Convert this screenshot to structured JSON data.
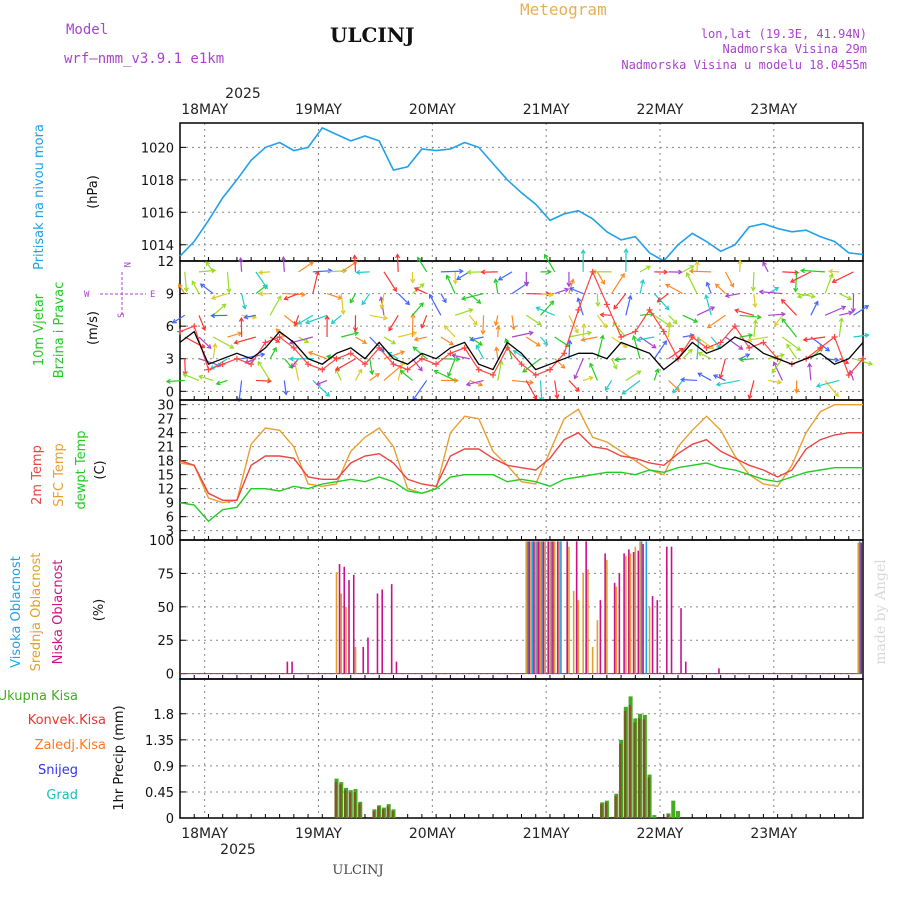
{
  "header": {
    "model_label": "Model",
    "model_name": "wrf—nmm_v3.9.1  e1km",
    "station": "ULCINJ",
    "product": "Meteogram",
    "lonlat": "lon,lat (19.3E, 41.94N)",
    "elevation": "Nadmorska Visina 29m",
    "model_elevation": "Nadmorska Visina u modelu 18.0455m",
    "footer_station": "ULCINJ",
    "credit": "made by Angel"
  },
  "time_axis": {
    "year": "2025",
    "day_labels": [
      "18MAY",
      "19MAY",
      "20MAY",
      "21MAY",
      "22MAY",
      "23MAY"
    ]
  },
  "panel_labels": {
    "pressure": [
      "Pritisak na nivou mora"
    ],
    "pressure_unit": "(hPa)",
    "wind": [
      "10m Vjetar",
      "Brzina i Pravac"
    ],
    "wind_unit": "(m/s)",
    "wind_compass": {
      "w": "W",
      "e": "E",
      "n": "N",
      "s": "S"
    },
    "temp": [
      "2m Temp",
      "SFC Temp",
      "dewpt Temp"
    ],
    "temp_unit": "(C)",
    "cloud": [
      "Visoka Oblacnost",
      "Srednja Oblacnost",
      "Niska Oblacnost"
    ],
    "cloud_unit": "(%)",
    "precip_legend": [
      "Ukupna Kisa",
      "Konvek.Kisa",
      "Zaledj.Kisa",
      "Snijeg",
      "Grad"
    ],
    "precip_unit": "1hr Precip (mm)"
  },
  "colors": {
    "pressure": "#22a0e8",
    "wind_speed": "#000000",
    "wind_gust": "#ff4444",
    "temp_2m": "#ee4444",
    "temp_sfc": "#e8a030",
    "temp_dew": "#22cc22",
    "cloud_high": "#22a0e8",
    "cloud_mid": "#e0a030",
    "cloud_low": "#cc1188",
    "precip_total": "#44aa22",
    "precip_conv": "#ee3333",
    "precip_frz": "#ff7722",
    "precip_snow": "#3333ee",
    "precip_grad": "#22bbbb",
    "title_purple": "#aa44cc",
    "meteogram_orange": "#e8b050"
  },
  "chart_data": [
    {
      "type": "line",
      "name": "pressure",
      "ylim": [
        1013,
        1021.5
      ],
      "yticks": [
        1014,
        1016,
        1018,
        1020
      ],
      "x_hours": [
        0,
        3,
        6,
        9,
        12,
        15,
        18,
        21,
        24,
        27,
        30,
        33,
        36,
        39,
        42,
        45,
        48,
        51,
        54,
        57,
        60,
        63,
        66,
        69,
        72,
        75,
        78,
        81,
        84,
        87,
        90,
        93,
        96,
        99,
        102,
        105,
        108,
        111,
        114,
        117,
        120,
        123,
        126,
        129,
        132,
        135,
        138,
        141,
        144
      ],
      "values": [
        1013.3,
        1014.2,
        1015.5,
        1016.9,
        1018.0,
        1019.2,
        1020.0,
        1020.3,
        1019.8,
        1020.0,
        1021.2,
        1020.8,
        1020.4,
        1020.7,
        1020.4,
        1018.6,
        1018.8,
        1019.9,
        1019.8,
        1019.9,
        1020.3,
        1020.0,
        1019.0,
        1018.0,
        1017.2,
        1016.5,
        1015.5,
        1015.9,
        1016.1,
        1015.6,
        1014.8,
        1014.3,
        1014.5,
        1013.5,
        1013.0,
        1014.0,
        1014.7,
        1014.2,
        1013.6,
        1014.0,
        1015.1,
        1015.3,
        1015.0,
        1014.8,
        1014.9,
        1014.5,
        1014.2,
        1013.5,
        1013.4
      ]
    },
    {
      "type": "line",
      "name": "wind",
      "ylim": [
        -0.8,
        12
      ],
      "yticks": [
        0,
        3,
        6,
        9,
        12
      ],
      "x_hours": [
        0,
        3,
        6,
        9,
        12,
        15,
        18,
        21,
        24,
        27,
        30,
        33,
        36,
        39,
        42,
        45,
        48,
        51,
        54,
        57,
        60,
        63,
        66,
        69,
        72,
        75,
        78,
        81,
        84,
        87,
        90,
        93,
        96,
        99,
        102,
        105,
        108,
        111,
        114,
        117,
        120,
        123,
        126,
        129,
        132,
        135,
        138,
        141,
        144
      ],
      "speed": [
        4.5,
        5.5,
        2.5,
        3.0,
        3.5,
        3.0,
        4.0,
        5.5,
        4.5,
        3.0,
        2.5,
        3.5,
        4.0,
        3.0,
        4.5,
        3.0,
        2.5,
        3.5,
        3.0,
        4.0,
        4.5,
        2.5,
        2.0,
        4.5,
        3.5,
        2.0,
        2.5,
        3.0,
        3.5,
        3.5,
        3.0,
        4.5,
        4.0,
        3.5,
        2.0,
        3.0,
        4.5,
        3.5,
        4.0,
        5.0,
        4.5,
        3.5,
        3.0,
        2.5,
        3.0,
        3.5,
        2.5,
        3.0,
        4.5
      ],
      "gust": [
        5.5,
        6.0,
        2.0,
        2.5,
        3.0,
        2.5,
        4.5,
        5.0,
        4.0,
        2.5,
        2.0,
        3.0,
        3.5,
        2.5,
        4.0,
        2.5,
        2.0,
        3.0,
        2.5,
        3.5,
        4.0,
        2.0,
        1.5,
        4.0,
        2.5,
        1.5,
        2.0,
        3.5,
        7.5,
        11.0,
        8.0,
        5.0,
        5.5,
        7.5,
        5.5,
        3.0,
        5.0,
        4.0,
        4.5,
        6.0,
        4.0,
        4.5,
        3.0,
        2.5,
        3.0,
        4.0,
        5.0,
        1.5,
        3.0
      ]
    },
    {
      "type": "line",
      "name": "temperature",
      "ylim": [
        1,
        31
      ],
      "yticks": [
        3,
        6,
        9,
        12,
        15,
        18,
        21,
        24,
        27,
        30
      ],
      "x_hours": [
        0,
        3,
        6,
        9,
        12,
        15,
        18,
        21,
        24,
        27,
        30,
        33,
        36,
        39,
        42,
        45,
        48,
        51,
        54,
        57,
        60,
        63,
        66,
        69,
        72,
        75,
        78,
        81,
        84,
        87,
        90,
        93,
        96,
        99,
        102,
        105,
        108,
        111,
        114,
        117,
        120,
        123,
        126,
        129,
        132,
        135,
        138,
        141,
        144
      ],
      "t2m": [
        18.0,
        17.0,
        11.0,
        9.5,
        9.5,
        17.0,
        19.0,
        19.0,
        18.5,
        14.5,
        14.0,
        14.0,
        17.5,
        19.0,
        19.5,
        17.5,
        14.0,
        13.0,
        12.5,
        19.0,
        20.5,
        20.5,
        18.5,
        17.0,
        16.5,
        16.0,
        18.5,
        22.5,
        24.0,
        21.0,
        20.5,
        19.0,
        18.5,
        17.5,
        17.0,
        19.5,
        21.5,
        22.5,
        20.0,
        18.5,
        17.0,
        16.0,
        14.5,
        16.0,
        20.5,
        22.5,
        23.5,
        24.0,
        24.0
      ],
      "tsfc": [
        17.5,
        17.0,
        10.0,
        9.0,
        9.5,
        21.5,
        25.0,
        24.5,
        21.0,
        13.0,
        12.5,
        13.0,
        20.0,
        23.0,
        25.0,
        21.0,
        12.0,
        11.0,
        12.0,
        24.0,
        27.5,
        27.0,
        20.0,
        17.0,
        13.5,
        13.0,
        20.0,
        27.0,
        29.0,
        23.0,
        22.0,
        20.0,
        18.0,
        16.0,
        15.0,
        21.0,
        24.5,
        27.5,
        24.5,
        19.0,
        15.0,
        13.0,
        12.5,
        17.0,
        24.0,
        28.5,
        30.0,
        30.0,
        30.0
      ],
      "tdew": [
        9.0,
        8.5,
        5.0,
        7.5,
        8.0,
        12.0,
        12.0,
        11.5,
        12.5,
        12.0,
        13.0,
        13.5,
        14.0,
        13.5,
        14.5,
        13.5,
        11.5,
        11.0,
        12.0,
        14.5,
        15.0,
        15.0,
        15.0,
        13.5,
        14.0,
        13.5,
        12.5,
        14.0,
        14.5,
        15.0,
        15.5,
        15.5,
        15.0,
        16.0,
        15.5,
        16.5,
        17.0,
        17.5,
        16.5,
        16.0,
        15.0,
        14.0,
        13.5,
        14.5,
        15.5,
        16.0,
        16.5,
        16.5,
        16.5
      ]
    },
    {
      "type": "bar",
      "name": "clouds",
      "ylim": [
        -4,
        100
      ],
      "yticks": [
        0,
        25,
        50,
        75,
        100
      ],
      "cloud_low": [
        {
          "h": 22,
          "v": 9
        },
        {
          "h": 23,
          "v": 9
        },
        {
          "h": 33,
          "v": 82
        },
        {
          "h": 34,
          "v": 80
        },
        {
          "h": 35,
          "v": 70
        },
        {
          "h": 36,
          "v": 74
        },
        {
          "h": 38,
          "v": 20
        },
        {
          "h": 39,
          "v": 27
        },
        {
          "h": 41,
          "v": 60
        },
        {
          "h": 42,
          "v": 63
        },
        {
          "h": 44,
          "v": 67
        },
        {
          "h": 45,
          "v": 9
        },
        {
          "h": 73,
          "v": 99
        },
        {
          "h": 74,
          "v": 99
        },
        {
          "h": 75,
          "v": 99
        },
        {
          "h": 76,
          "v": 99
        },
        {
          "h": 77,
          "v": 99
        },
        {
          "h": 78,
          "v": 99
        },
        {
          "h": 79,
          "v": 99
        },
        {
          "h": 81,
          "v": 99
        },
        {
          "h": 83,
          "v": 99
        },
        {
          "h": 85,
          "v": 99
        },
        {
          "h": 88,
          "v": 55
        },
        {
          "h": 89,
          "v": 90
        },
        {
          "h": 91,
          "v": 68
        },
        {
          "h": 92,
          "v": 75
        },
        {
          "h": 93,
          "v": 90
        },
        {
          "h": 94,
          "v": 93
        },
        {
          "h": 95,
          "v": 91
        },
        {
          "h": 96,
          "v": 92
        },
        {
          "h": 97,
          "v": 97
        },
        {
          "h": 99,
          "v": 58
        },
        {
          "h": 100,
          "v": 55
        },
        {
          "h": 102,
          "v": 95
        },
        {
          "h": 103,
          "v": 95
        },
        {
          "h": 105,
          "v": 49
        },
        {
          "h": 106,
          "v": 9
        },
        {
          "h": 113,
          "v": 4
        },
        {
          "h": 143,
          "v": 98
        }
      ],
      "cloud_mid": [
        {
          "h": 33,
          "v": 76
        },
        {
          "h": 34,
          "v": 60
        },
        {
          "h": 35,
          "v": 50
        },
        {
          "h": 37,
          "v": 20
        },
        {
          "h": 73,
          "v": 99
        },
        {
          "h": 74,
          "v": 99
        },
        {
          "h": 75,
          "v": 99
        },
        {
          "h": 76,
          "v": 99
        },
        {
          "h": 77,
          "v": 99
        },
        {
          "h": 78,
          "v": 99
        },
        {
          "h": 79,
          "v": 99
        },
        {
          "h": 80,
          "v": 99
        },
        {
          "h": 82,
          "v": 95
        },
        {
          "h": 83,
          "v": 62
        },
        {
          "h": 84,
          "v": 55
        },
        {
          "h": 85,
          "v": 75
        },
        {
          "h": 86,
          "v": 78
        },
        {
          "h": 87,
          "v": 20
        },
        {
          "h": 88,
          "v": 40
        },
        {
          "h": 90,
          "v": 85
        },
        {
          "h": 92,
          "v": 65
        },
        {
          "h": 94,
          "v": 88
        },
        {
          "h": 95,
          "v": 90
        },
        {
          "h": 96,
          "v": 95
        },
        {
          "h": 97,
          "v": 99
        },
        {
          "h": 99,
          "v": 50
        },
        {
          "h": 143,
          "v": 98
        }
      ],
      "cloud_high": [
        {
          "h": 73,
          "v": 99
        },
        {
          "h": 74,
          "v": 99
        },
        {
          "h": 75,
          "v": 99
        },
        {
          "h": 76,
          "v": 99
        },
        {
          "h": 78,
          "v": 99
        },
        {
          "h": 80,
          "v": 99
        },
        {
          "h": 97,
          "v": 99
        },
        {
          "h": 98,
          "v": 99
        },
        {
          "h": 143,
          "v": 99
        }
      ]
    },
    {
      "type": "bar",
      "name": "precipitation",
      "ylim": [
        0,
        2.4
      ],
      "yticks": [
        0,
        0.45,
        0.9,
        1.35,
        1.8
      ],
      "total": [
        {
          "h": 33,
          "v": 0.68
        },
        {
          "h": 34,
          "v": 0.62
        },
        {
          "h": 35,
          "v": 0.52
        },
        {
          "h": 36,
          "v": 0.48
        },
        {
          "h": 37,
          "v": 0.5
        },
        {
          "h": 38,
          "v": 0.28
        },
        {
          "h": 41,
          "v": 0.15
        },
        {
          "h": 42,
          "v": 0.22
        },
        {
          "h": 43,
          "v": 0.18
        },
        {
          "h": 44,
          "v": 0.24
        },
        {
          "h": 45,
          "v": 0.15
        },
        {
          "h": 89,
          "v": 0.27
        },
        {
          "h": 90,
          "v": 0.3
        },
        {
          "h": 92,
          "v": 0.42
        },
        {
          "h": 93,
          "v": 1.35
        },
        {
          "h": 94,
          "v": 1.92
        },
        {
          "h": 95,
          "v": 2.1
        },
        {
          "h": 96,
          "v": 1.72
        },
        {
          "h": 97,
          "v": 1.8
        },
        {
          "h": 98,
          "v": 1.78
        },
        {
          "h": 99,
          "v": 0.75
        },
        {
          "h": 100,
          "v": 0.05
        },
        {
          "h": 103,
          "v": 0.08
        },
        {
          "h": 104,
          "v": 0.3
        },
        {
          "h": 105,
          "v": 0.12
        }
      ],
      "convective": [
        {
          "h": 33,
          "v": 0.62
        },
        {
          "h": 34,
          "v": 0.58
        },
        {
          "h": 35,
          "v": 0.48
        },
        {
          "h": 36,
          "v": 0.44
        },
        {
          "h": 37,
          "v": 0.45
        },
        {
          "h": 38,
          "v": 0.25
        },
        {
          "h": 41,
          "v": 0.12
        },
        {
          "h": 42,
          "v": 0.2
        },
        {
          "h": 43,
          "v": 0.15
        },
        {
          "h": 44,
          "v": 0.2
        },
        {
          "h": 45,
          "v": 0.12
        },
        {
          "h": 89,
          "v": 0.24
        },
        {
          "h": 90,
          "v": 0.27
        },
        {
          "h": 92,
          "v": 0.38
        },
        {
          "h": 93,
          "v": 1.28
        },
        {
          "h": 94,
          "v": 1.85
        },
        {
          "h": 95,
          "v": 1.95
        },
        {
          "h": 96,
          "v": 1.65
        },
        {
          "h": 97,
          "v": 1.72
        },
        {
          "h": 98,
          "v": 1.7
        },
        {
          "h": 99,
          "v": 0.7
        },
        {
          "h": 103,
          "v": 0.06
        }
      ]
    }
  ]
}
